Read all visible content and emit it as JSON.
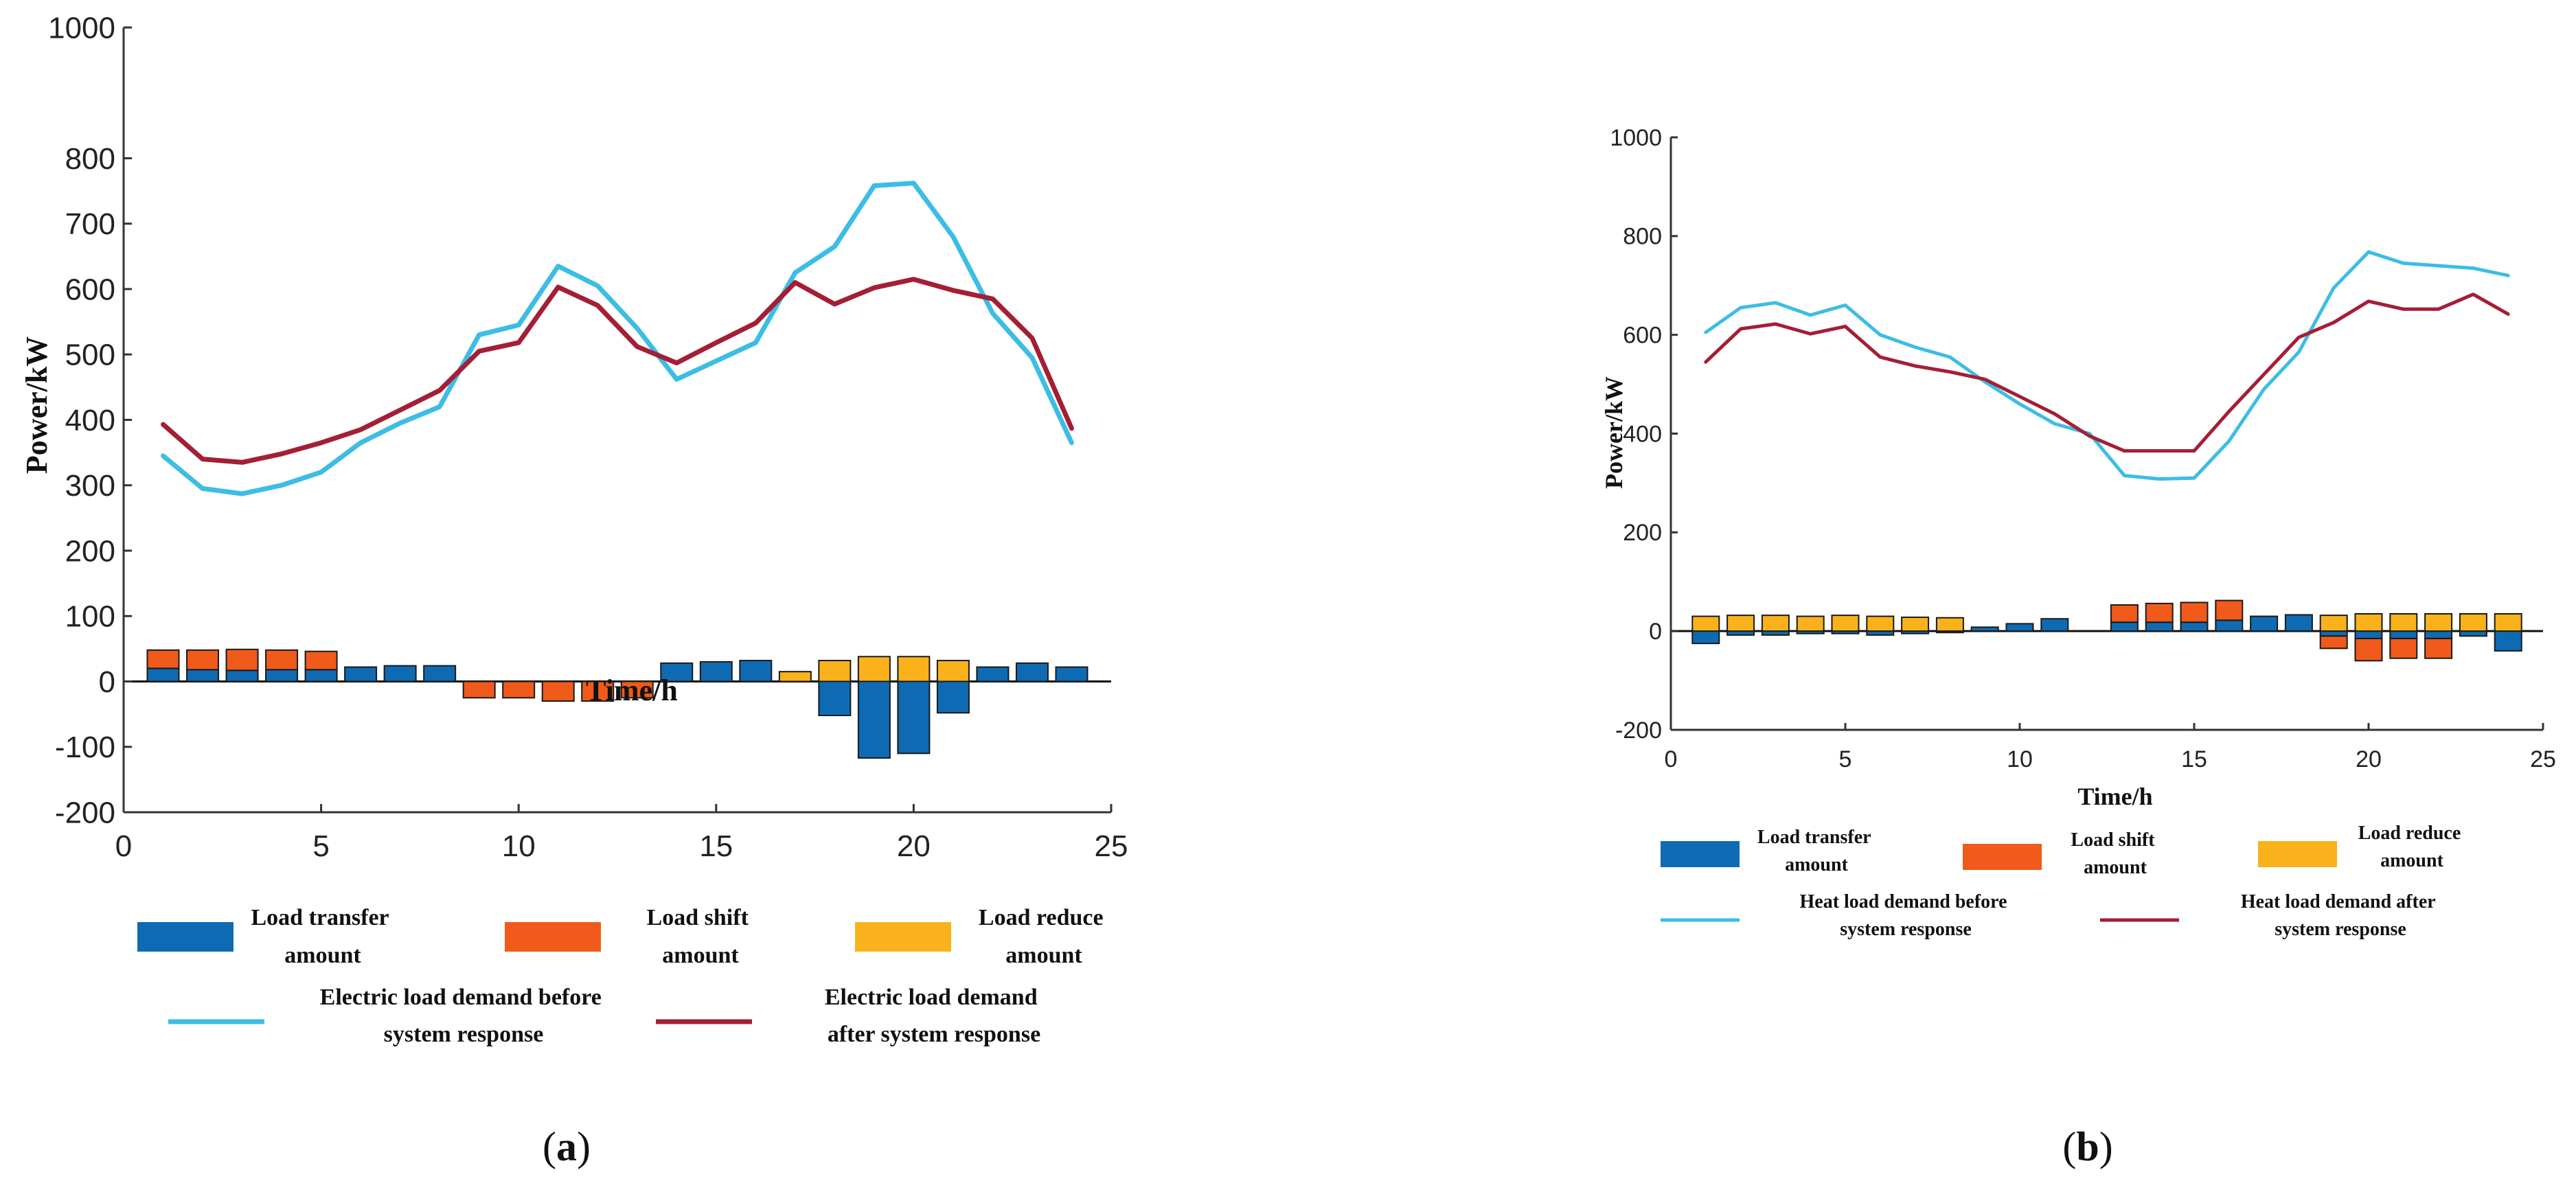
{
  "chart_data": [
    {
      "panel_label": "a",
      "type": "bar+line",
      "xlabel": "Time/h",
      "ylabel": "Power/kW",
      "xlim": [
        0,
        25
      ],
      "ylim": [
        -200,
        1000
      ],
      "x_ticks": [
        0,
        5,
        10,
        15,
        20,
        25
      ],
      "y_ticks": [
        -200,
        -100,
        0,
        100,
        200,
        300,
        400,
        500,
        600,
        700,
        800,
        1000
      ],
      "x": [
        1,
        2,
        3,
        4,
        5,
        6,
        7,
        8,
        9,
        10,
        11,
        12,
        13,
        14,
        15,
        16,
        17,
        18,
        19,
        20,
        21,
        22,
        23,
        24
      ],
      "bars": [
        {
          "name": "Load transfer amount",
          "color": "#0e6bb3",
          "values": [
            20,
            18,
            17,
            18,
            18,
            22,
            24,
            24,
            0,
            0,
            0,
            0,
            0,
            28,
            30,
            32,
            0,
            -52,
            -117,
            -110,
            -48,
            22,
            28,
            22
          ]
        },
        {
          "name": "Load shift amount",
          "color": "#f05a1a",
          "values": [
            28,
            30,
            32,
            30,
            28,
            0,
            0,
            0,
            -25,
            -25,
            -30,
            -30,
            -25,
            0,
            0,
            0,
            0,
            0,
            0,
            0,
            0,
            0,
            0,
            0
          ]
        },
        {
          "name": "Load reduce amount",
          "color": "#f9b21b",
          "values": [
            0,
            0,
            0,
            0,
            0,
            0,
            0,
            0,
            0,
            0,
            0,
            0,
            0,
            0,
            0,
            0,
            15,
            32,
            38,
            38,
            32,
            0,
            0,
            0
          ]
        }
      ],
      "series": [
        {
          "name": "Electric load demand before system response",
          "color": "#3cbde4",
          "values": [
            345,
            295,
            287,
            300,
            320,
            365,
            395,
            420,
            530,
            545,
            635,
            605,
            540,
            462,
            490,
            518,
            625,
            665,
            758,
            762,
            680,
            563,
            495,
            365
          ]
        },
        {
          "name": "Electric load demand after system response",
          "color": "#a31f35",
          "values": [
            393,
            340,
            335,
            348,
            365,
            385,
            415,
            445,
            505,
            518,
            603,
            575,
            512,
            487,
            518,
            548,
            610,
            577,
            602,
            615,
            598,
            585,
            525,
            387
          ]
        }
      ],
      "legend": {
        "transfer": [
          "Load transfer",
          "amount"
        ],
        "shift": [
          "Load shift",
          "amount"
        ],
        "reduce": [
          "Load reduce",
          "amount"
        ],
        "before": [
          "Electric load demand before",
          "system response"
        ],
        "after": [
          "Electric load demand",
          "after system response"
        ]
      },
      "caption": {
        "open": "(",
        "letter": "a",
        "close": ")"
      }
    },
    {
      "panel_label": "b",
      "type": "bar+line",
      "xlabel": "Time/h",
      "ylabel": "Power/kW",
      "xlim": [
        0,
        25
      ],
      "ylim": [
        -200,
        1000
      ],
      "x_ticks": [
        0,
        5,
        10,
        15,
        20,
        25
      ],
      "y_ticks": [
        -200,
        0,
        200,
        400,
        600,
        800,
        1000
      ],
      "x": [
        1,
        2,
        3,
        4,
        5,
        6,
        7,
        8,
        9,
        10,
        11,
        12,
        13,
        14,
        15,
        16,
        17,
        18,
        19,
        20,
        21,
        22,
        23,
        24
      ],
      "bars": [
        {
          "name": "Load transfer amount",
          "color": "#0e6bb3",
          "values": [
            -25,
            -8,
            -8,
            -5,
            -5,
            -8,
            -5,
            -3,
            8,
            15,
            25,
            0,
            18,
            18,
            18,
            22,
            30,
            33,
            -10,
            -15,
            -15,
            -15,
            -10,
            -40
          ]
        },
        {
          "name": "Load shift amount",
          "color": "#f05a1a",
          "values": [
            0,
            0,
            0,
            0,
            0,
            0,
            0,
            0,
            0,
            0,
            0,
            0,
            35,
            38,
            40,
            40,
            0,
            0,
            -25,
            -45,
            -40,
            -40,
            0,
            0
          ]
        },
        {
          "name": "Load reduce amount",
          "color": "#f9b21b",
          "values": [
            30,
            32,
            32,
            30,
            32,
            30,
            28,
            27,
            0,
            0,
            0,
            0,
            0,
            0,
            0,
            0,
            0,
            0,
            32,
            35,
            35,
            35,
            35,
            35
          ]
        }
      ],
      "series": [
        {
          "name": "Heat load demand before system response",
          "color": "#3cbde4",
          "values": [
            605,
            655,
            665,
            640,
            660,
            600,
            575,
            555,
            505,
            460,
            420,
            400,
            315,
            308,
            310,
            385,
            490,
            565,
            695,
            768,
            745,
            740,
            735,
            720
          ]
        },
        {
          "name": "Heat load demand after system response",
          "color": "#a31f35",
          "values": [
            545,
            612,
            622,
            602,
            617,
            555,
            537,
            525,
            510,
            475,
            440,
            395,
            365,
            365,
            365,
            445,
            520,
            595,
            625,
            668,
            652,
            652,
            682,
            642
          ]
        }
      ],
      "legend": {
        "transfer": [
          "Load transfer",
          "amount"
        ],
        "shift": [
          "Load shift",
          "amount"
        ],
        "reduce": [
          "Load reduce",
          "amount"
        ],
        "before": [
          "Heat load demand  before",
          "system response"
        ],
        "after": [
          "Heat load demand  after",
          "system response"
        ]
      },
      "caption": {
        "open": "(",
        "letter": "b",
        "close": ")"
      }
    }
  ]
}
